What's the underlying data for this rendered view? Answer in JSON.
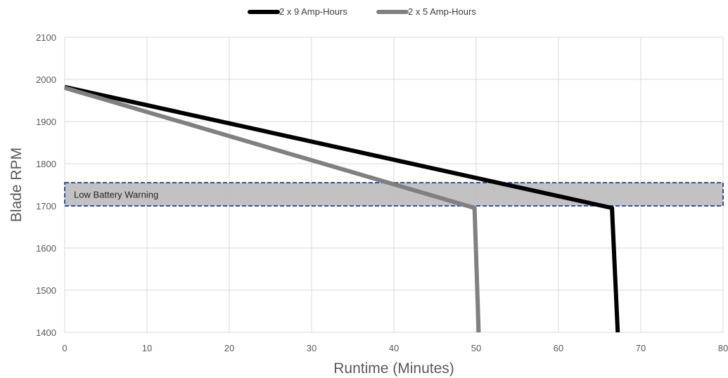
{
  "chart_data": {
    "type": "line",
    "xlabel": "Runtime (Minutes)",
    "ylabel": "Blade RPM",
    "xlim": [
      0,
      80
    ],
    "ylim": [
      1400,
      2100
    ],
    "xticks": [
      0,
      10,
      20,
      30,
      40,
      50,
      60,
      70,
      80
    ],
    "yticks": [
      1400,
      1500,
      1600,
      1700,
      1800,
      1900,
      2000,
      2100
    ],
    "grid": true,
    "legend_position": "top-center",
    "series": [
      {
        "name": "2 x 9 Amp-Hours",
        "color": "#000000",
        "x": [
          0,
          66.5,
          67.2
        ],
        "y": [
          1982,
          1695,
          1400
        ]
      },
      {
        "name": "2 x 5 Amp-Hours",
        "color": "#808080",
        "x": [
          0,
          49.8,
          50.3
        ],
        "y": [
          1980,
          1695,
          1400
        ]
      }
    ],
    "annotations": [
      {
        "type": "band",
        "label": "Low Battery Warning",
        "y_range": [
          1700,
          1755
        ],
        "x_range": [
          0,
          80
        ],
        "fill": "#bfbfbf",
        "border": "#2f5597"
      }
    ]
  }
}
